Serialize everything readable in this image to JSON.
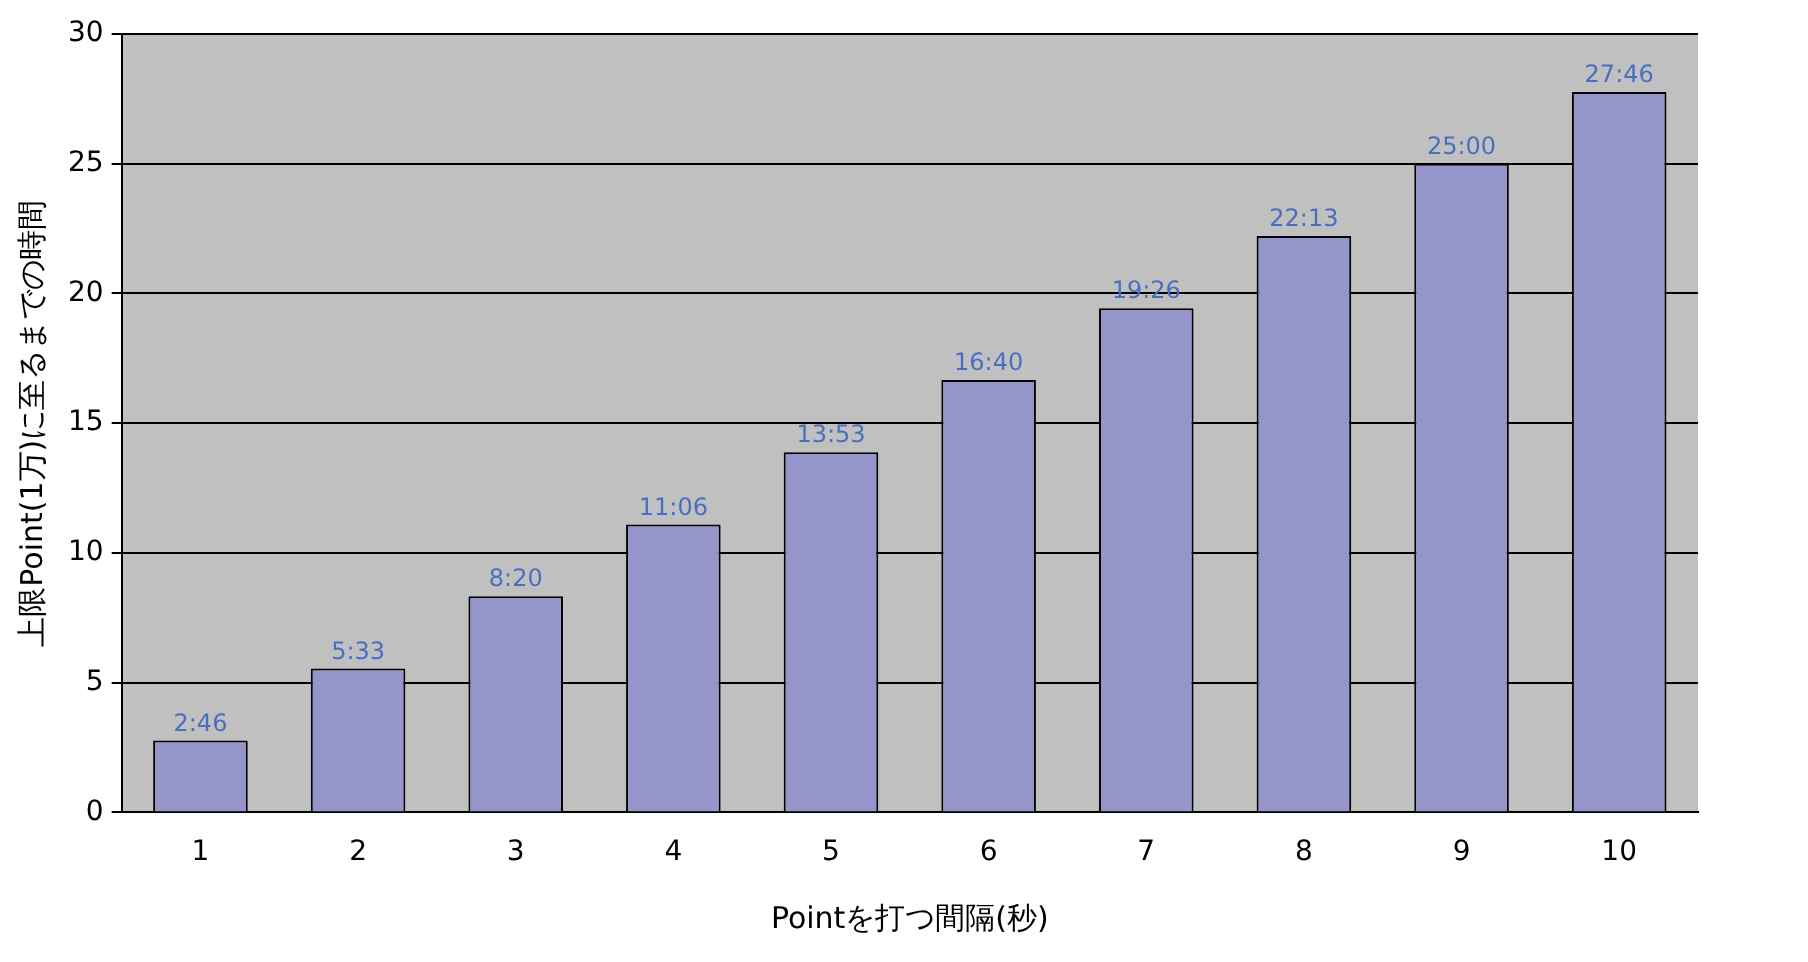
{
  "chart_data": {
    "type": "bar",
    "xlabel": "Pointを打つ間隔(秒)",
    "ylabel": "上限Point(1万)に至るまでの時間",
    "categories": [
      "1",
      "2",
      "3",
      "4",
      "5",
      "6",
      "7",
      "8",
      "9",
      "10"
    ],
    "values": [
      2.767,
      5.55,
      8.333,
      11.1,
      13.883,
      16.667,
      19.433,
      22.217,
      25,
      27.767
    ],
    "value_labels": [
      "2:46",
      "5:33",
      "8:20",
      "11:06",
      "13:53",
      "16:40",
      "19:26",
      "22:13",
      "25:00",
      "27:46"
    ],
    "color": "#9595cb",
    "ylim": [
      0,
      30
    ],
    "yticks": [
      0,
      5,
      10,
      15,
      20,
      25,
      30
    ],
    "grid": "y",
    "legend": false
  }
}
